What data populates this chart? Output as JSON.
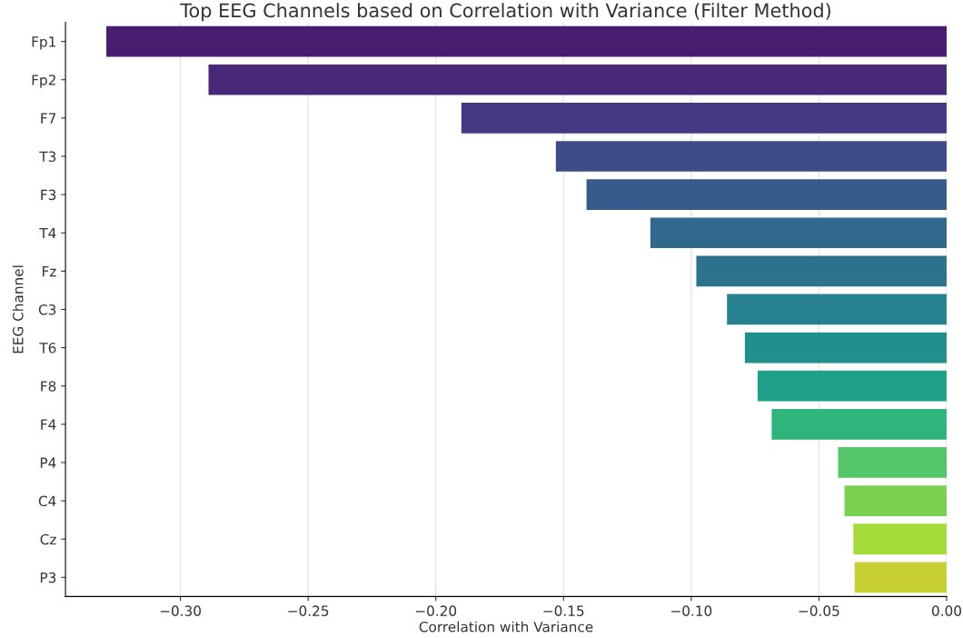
{
  "chart_data": {
    "type": "bar",
    "orientation": "horizontal",
    "title": "Top EEG Channels based on Correlation with Variance (Filter Method)",
    "xlabel": "Correlation with Variance",
    "ylabel": "EEG Channel",
    "categories": [
      "Fp1",
      "Fp2",
      "F7",
      "T3",
      "F3",
      "T4",
      "Fz",
      "C3",
      "T6",
      "F8",
      "F4",
      "P4",
      "C4",
      "Cz",
      "P3"
    ],
    "values": [
      -0.329,
      -0.289,
      -0.19,
      -0.153,
      -0.141,
      -0.116,
      -0.098,
      -0.086,
      -0.079,
      -0.074,
      -0.0685,
      -0.0425,
      -0.04,
      -0.0365,
      -0.036
    ],
    "colors": [
      "#481c6e",
      "#482979",
      "#443a83",
      "#3e4c8a",
      "#375b8d",
      "#31688e",
      "#2c728e",
      "#26828e",
      "#21908d",
      "#1fa088",
      "#2fb47c",
      "#54c568",
      "#7ad151",
      "#a5db36",
      "#c8d134"
    ],
    "xlim": [
      -0.345,
      0.0
    ],
    "xticks": [
      {
        "value": -0.3,
        "label": "−0.30"
      },
      {
        "value": -0.25,
        "label": "−0.25"
      },
      {
        "value": -0.2,
        "label": "−0.20"
      },
      {
        "value": -0.15,
        "label": "−0.15"
      },
      {
        "value": -0.1,
        "label": "−0.10"
      },
      {
        "value": -0.05,
        "label": "−0.05"
      },
      {
        "value": 0.0,
        "label": "0.00"
      }
    ],
    "grid": "x"
  }
}
